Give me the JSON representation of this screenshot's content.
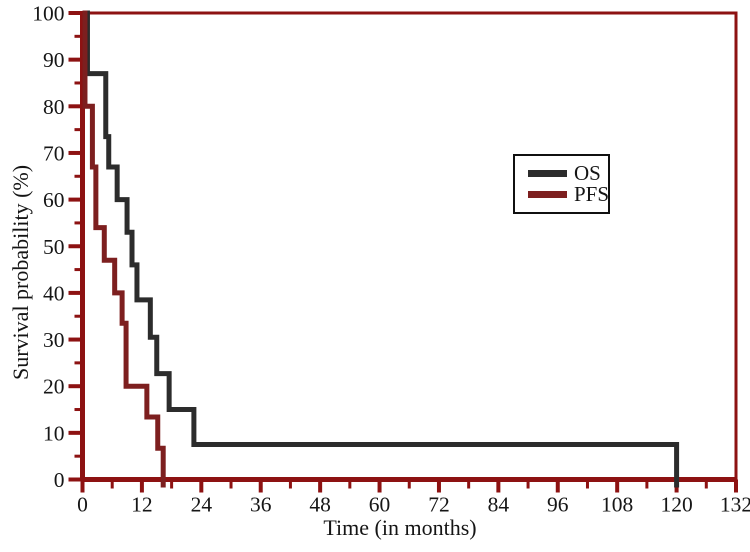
{
  "chart_data": {
    "type": "line",
    "subtype": "kaplan-meier-step",
    "title": "",
    "xlabel": "Time (in months)",
    "ylabel": "Survival probability (%)",
    "xlim": [
      0,
      132
    ],
    "ylim": [
      0,
      100
    ],
    "xticks": [
      0,
      12,
      24,
      36,
      48,
      60,
      72,
      84,
      96,
      108,
      120,
      132
    ],
    "xtick_minor_step": 6,
    "yticks": [
      0,
      10,
      20,
      30,
      40,
      50,
      60,
      70,
      80,
      90,
      100
    ],
    "ytick_minor_step": 5,
    "grid": false,
    "frame": "full-box",
    "axis_color": "#8d1212",
    "tick_label_color": "#161616",
    "legend_position": "upper-middle-right",
    "series": [
      {
        "name": "OS",
        "color": "#2c2c2c",
        "points": [
          [
            0,
            100
          ],
          [
            1,
            87
          ],
          [
            4.7,
            73.5
          ],
          [
            5.3,
            67
          ],
          [
            7,
            60
          ],
          [
            9,
            53
          ],
          [
            10,
            46
          ],
          [
            11,
            38.5
          ],
          [
            13.7,
            30.5
          ],
          [
            15,
            22.7
          ],
          [
            17.5,
            15
          ],
          [
            22.5,
            7.5
          ],
          [
            120,
            0
          ]
        ]
      },
      {
        "name": "PFS",
        "color": "#7d1f1f",
        "points": [
          [
            0,
            100
          ],
          [
            0.5,
            80
          ],
          [
            2,
            67
          ],
          [
            2.7,
            54
          ],
          [
            4.4,
            47
          ],
          [
            6.5,
            40
          ],
          [
            8,
            33.5
          ],
          [
            8.8,
            20
          ],
          [
            13,
            13.4
          ],
          [
            15.2,
            6.7
          ],
          [
            16.3,
            0
          ]
        ]
      }
    ]
  }
}
